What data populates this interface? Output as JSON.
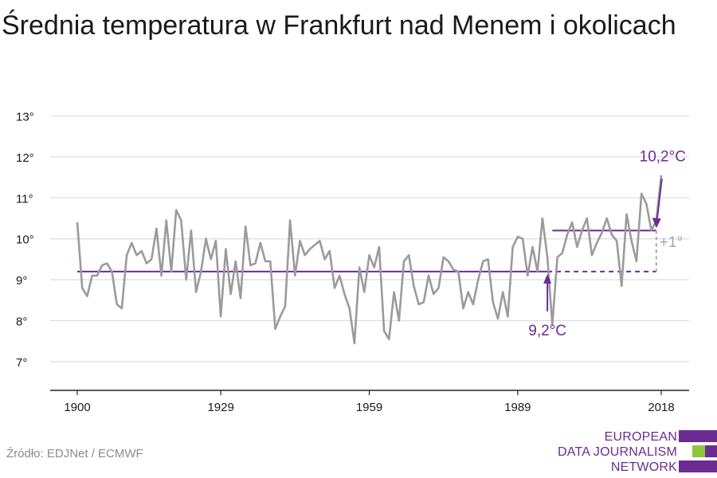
{
  "header": {
    "title": "Średnia temperatura w Frankfurt nad Menem i okolicach"
  },
  "footer": {
    "source": "Źródło: EDJNet / ECMWF"
  },
  "logo": {
    "lines": [
      "EUROPEAN",
      "DATA JOURNALISM",
      "NETWORK"
    ],
    "colors": {
      "purple": "#6b2c91",
      "green": "#8cc63f"
    }
  },
  "colors": {
    "series": "#9b9b9b",
    "reference": "#6b2c91",
    "delta": "#a6a6a6",
    "grid": "#dddddd",
    "axis": "#222222"
  },
  "chart_data": {
    "type": "line",
    "title": "Średnia temperatura w Frankfurt nad Menem i okolicach",
    "xlabel": "",
    "ylabel": "",
    "xlim": [
      1900,
      2018
    ],
    "ylim": [
      6.3,
      13.3
    ],
    "x_ticks": [
      {
        "value": 1900,
        "label": "1900"
      },
      {
        "value": 1929,
        "label": "1929"
      },
      {
        "value": 1959,
        "label": "1959"
      },
      {
        "value": 1989,
        "label": "1989"
      },
      {
        "value": 2018,
        "label": "2018"
      }
    ],
    "y_ticks": [
      {
        "value": 7,
        "label": "7°"
      },
      {
        "value": 8,
        "label": "8°"
      },
      {
        "value": 9,
        "label": "9°"
      },
      {
        "value": 10,
        "label": "10°"
      },
      {
        "value": 11,
        "label": "11°"
      },
      {
        "value": 12,
        "label": "12°"
      },
      {
        "value": 13,
        "label": "13°"
      }
    ],
    "grid": true,
    "series": [
      {
        "x": [
          1900,
          1901,
          1902,
          1903,
          1904,
          1905,
          1906,
          1907,
          1908,
          1909,
          1910,
          1911,
          1912,
          1913,
          1914,
          1915,
          1916,
          1917,
          1918,
          1919,
          1920,
          1921,
          1922,
          1923,
          1924,
          1925,
          1926,
          1927,
          1928,
          1929,
          1930,
          1931,
          1932,
          1933,
          1934,
          1935,
          1936,
          1937,
          1938,
          1939,
          1940,
          1941,
          1942,
          1943,
          1944,
          1945,
          1946,
          1947,
          1948,
          1949,
          1950,
          1951,
          1952,
          1953,
          1954,
          1955,
          1956,
          1957,
          1958,
          1959,
          1960,
          1961,
          1962,
          1963,
          1964,
          1965,
          1966,
          1967,
          1968,
          1969,
          1970,
          1971,
          1972,
          1973,
          1974,
          1975,
          1976,
          1977,
          1978,
          1979,
          1980,
          1981,
          1982,
          1983,
          1984,
          1985,
          1986,
          1987,
          1988,
          1989,
          1990,
          1991,
          1992,
          1993,
          1994,
          1995,
          1996,
          1997,
          1998,
          1999,
          2000,
          2001,
          2002,
          2003,
          2004,
          2005,
          2006,
          2007,
          2008,
          2009,
          2010,
          2011,
          2012,
          2013,
          2014,
          2015,
          2016,
          2017,
          2018
        ],
        "values": [
          10.4,
          8.8,
          8.6,
          9.1,
          9.1,
          9.35,
          9.4,
          9.2,
          8.4,
          8.3,
          9.6,
          9.9,
          9.6,
          9.7,
          9.4,
          9.5,
          10.25,
          9.1,
          10.45,
          9.2,
          10.7,
          10.45,
          9.0,
          10.2,
          8.7,
          9.2,
          10.0,
          9.5,
          9.95,
          8.1,
          9.75,
          8.65,
          9.45,
          8.55,
          10.3,
          9.35,
          9.4,
          9.9,
          9.45,
          9.45,
          7.8,
          8.1,
          8.35,
          10.45,
          9.1,
          9.95,
          9.6,
          9.75,
          9.85,
          9.95,
          9.5,
          9.7,
          8.8,
          9.1,
          8.65,
          8.3,
          7.45,
          9.3,
          8.7,
          9.6,
          9.3,
          9.8,
          7.75,
          7.55,
          8.7,
          8.0,
          9.45,
          9.6,
          8.85,
          8.4,
          8.45,
          9.1,
          8.65,
          8.8,
          9.55,
          9.45,
          9.25,
          9.2,
          8.3,
          8.7,
          8.4,
          9.0,
          9.45,
          9.5,
          8.45,
          8.05,
          8.7,
          8.1,
          9.8,
          10.05,
          10.0,
          9.1,
          9.8,
          9.2,
          10.5,
          9.55,
          7.9,
          9.55,
          9.65,
          10.1,
          10.4,
          9.8,
          10.2,
          10.5,
          9.6,
          9.9,
          10.15,
          10.5,
          10.1,
          9.95,
          8.85,
          10.6,
          9.95,
          9.45,
          11.1,
          10.85,
          10.2,
          10.45,
          11.55
        ]
      }
    ],
    "annotations": {
      "baseline": {
        "value": 9.2,
        "x_solid_end": 1995,
        "x_dash_end": 2017,
        "label": "9,2°C",
        "arrow_x": 1995
      },
      "recent": {
        "value": 10.2,
        "x_start": 1996,
        "x_end": 2017,
        "label": "10,2°C",
        "arrow_x": 2017
      },
      "delta": {
        "label": "+1°",
        "x": 2017
      }
    }
  }
}
